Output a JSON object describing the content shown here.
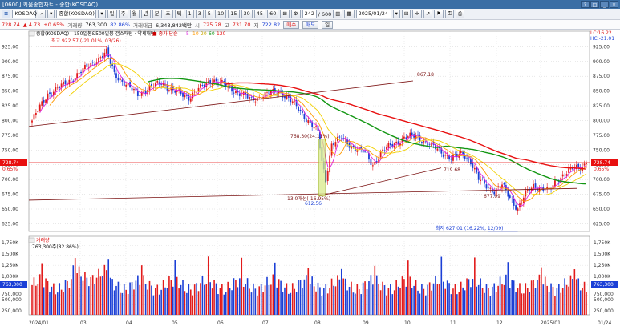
{
  "window": {
    "title": "[0600] 키움종합차트 - 종합(KOSDAQ)",
    "buttons": [
      "?",
      "□",
      "_",
      "×"
    ]
  },
  "toolbar": {
    "code": "KOSDAQ",
    "name": "종합(KOSDAQ)",
    "periods": [
      "일",
      "주",
      "월",
      "년",
      "분",
      "초",
      "틱"
    ],
    "active_period": "일",
    "intervals": [
      "1",
      "3",
      "5",
      "10",
      "15",
      "30",
      "45",
      "60"
    ],
    "count": "242",
    "count_total": "600",
    "date": "2025/01/24"
  },
  "info": {
    "price": "728.74",
    "change": "▲ 4.73",
    "change_pct": "+0.65%",
    "volume_label": "거래량",
    "volume": "763,300",
    "vol_ratio": "82.86%",
    "amount_label": "거래대금",
    "amount": "6,343,842백만",
    "open_label": "시",
    "open": "725.78",
    "high_label": "고",
    "high": "731.70",
    "low_label": "저",
    "low": "722.82",
    "buy_label": "매수",
    "sell_label": "매도",
    "misc_label": "일"
  },
  "price_panel": {
    "legend_index": "종합(KOSDAQ)",
    "legend_range": "150일봉&500일봉 갭스패턴 · 약세패턴",
    "legend_ma_label": "■ 종가 단순",
    "legend_ma_periods": [
      "5",
      "10",
      "20",
      "60",
      "120"
    ],
    "lc": "LC:16.22",
    "hc": "HC:-21.01",
    "annotations": {
      "high": "최고 922.57 (-21.01%, 03/26)",
      "low": "최저 627.01 (16.22%, 12/09)",
      "trend_end": "867.18",
      "trend_mid": "719.68",
      "low_aug": "612.56",
      "aug_a": "13.0개선(-16.95%)",
      "aug_b": "768.30(24.11%)",
      "aug_c": "677.99"
    },
    "current_label": "728.74",
    "current_pct": "0.65%"
  },
  "volume_panel": {
    "title": "거래량",
    "value_line": "763,300주(82.86%)",
    "current_label": "763,300",
    "scale_labels": [
      "1,750K",
      "1,500K",
      "1,250K",
      "1,000K",
      "750,000",
      "500,000",
      "250,000"
    ]
  },
  "x_axis": {
    "labels": [
      "2024/01",
      "03",
      "04",
      "05",
      "06",
      "07",
      "08",
      "09",
      "10",
      "11",
      "12",
      "2025/01",
      "01/24"
    ]
  },
  "chart_data": {
    "type": "candlestick",
    "title": "종합(KOSDAQ)",
    "y_axis_ticks": [
      925,
      900,
      875,
      850,
      825,
      800,
      775,
      750,
      725,
      700,
      675,
      650,
      625
    ],
    "ylim": [
      612,
      935
    ],
    "x_range": [
      "2024/01",
      "2025/01/24"
    ],
    "moving_averages": [
      {
        "period": 5,
        "color": "#e020e0"
      },
      {
        "period": 10,
        "color": "#ff9900"
      },
      {
        "period": 20,
        "color": "#f2d000"
      },
      {
        "period": 60,
        "color": "#129612"
      },
      {
        "period": 120,
        "color": "#e81010"
      }
    ],
    "key_points": {
      "high": 922.57,
      "high_date": "03/26",
      "low": 627.01,
      "low_date": "12/09",
      "last_close": 728.74
    },
    "volume_ylim": [
      0,
      1900000
    ],
    "colors": {
      "up": "#e21b1b",
      "down": "#1b3fd6",
      "current_line": "#e81010"
    }
  }
}
